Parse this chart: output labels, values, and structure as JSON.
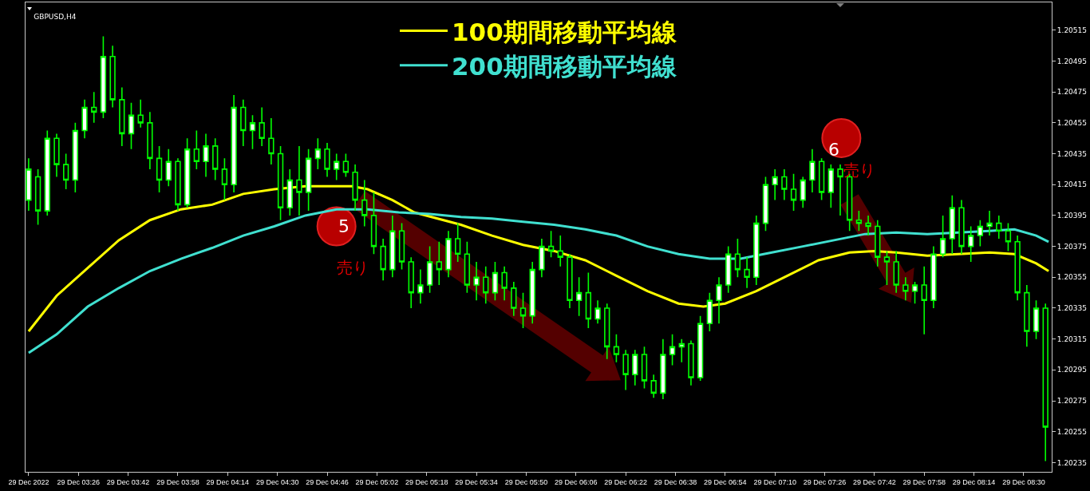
{
  "chart_data": {
    "type": "candlestick",
    "title": "GBPUSD,H4",
    "color": "#00ff00",
    "x": [
      "2022-12-29T03:10",
      "2022-12-29T03:13",
      "2022-12-29T03:16",
      "2022-12-29T03:19",
      "2022-12-29T03:22",
      "2022-12-29T03:25",
      "2022-12-29T03:28",
      "2022-12-29T03:31",
      "2022-12-29T03:34",
      "2022-12-29T03:37",
      "2022-12-29T03:40",
      "2022-12-29T03:43",
      "2022-12-29T03:46",
      "2022-12-29T03:49",
      "2022-12-29T03:52",
      "2022-12-29T03:55",
      "2022-12-29T03:58",
      "2022-12-29T04:01",
      "2022-12-29T04:04",
      "2022-12-29T04:07",
      "2022-12-29T04:10",
      "2022-12-29T04:13",
      "2022-12-29T04:16",
      "2022-12-29T04:19",
      "2022-12-29T04:22",
      "2022-12-29T04:25",
      "2022-12-29T04:28",
      "2022-12-29T04:31",
      "2022-12-29T04:34",
      "2022-12-29T04:37",
      "2022-12-29T04:40",
      "2022-12-29T04:43",
      "2022-12-29T04:46",
      "2022-12-29T04:49",
      "2022-12-29T04:52",
      "2022-12-29T04:55",
      "2022-12-29T04:58",
      "2022-12-29T05:01",
      "2022-12-29T05:04",
      "2022-12-29T05:07",
      "2022-12-29T05:10",
      "2022-12-29T05:13",
      "2022-12-29T05:16",
      "2022-12-29T05:19",
      "2022-12-29T05:22",
      "2022-12-29T05:25",
      "2022-12-29T05:28",
      "2022-12-29T05:31",
      "2022-12-29T05:34",
      "2022-12-29T05:37",
      "2022-12-29T05:40",
      "2022-12-29T05:43",
      "2022-12-29T05:46",
      "2022-12-29T05:49",
      "2022-12-29T05:52",
      "2022-12-29T05:55",
      "2022-12-29T05:58",
      "2022-12-29T06:01",
      "2022-12-29T06:04",
      "2022-12-29T06:07",
      "2022-12-29T06:10",
      "2022-12-29T06:13",
      "2022-12-29T06:16",
      "2022-12-29T06:19",
      "2022-12-29T06:22",
      "2022-12-29T06:25",
      "2022-12-29T06:28",
      "2022-12-29T06:31",
      "2022-12-29T06:34",
      "2022-12-29T06:37",
      "2022-12-29T06:40",
      "2022-12-29T06:43",
      "2022-12-29T06:46",
      "2022-12-29T06:49",
      "2022-12-29T06:52",
      "2022-12-29T06:55",
      "2022-12-29T06:58",
      "2022-12-29T07:01",
      "2022-12-29T07:04",
      "2022-12-29T07:07",
      "2022-12-29T07:10",
      "2022-12-29T07:13",
      "2022-12-29T07:16",
      "2022-12-29T07:19",
      "2022-12-29T07:22",
      "2022-12-29T07:25",
      "2022-12-29T07:28",
      "2022-12-29T07:31",
      "2022-12-29T07:34",
      "2022-12-29T07:37",
      "2022-12-29T07:40",
      "2022-12-29T07:43",
      "2022-12-29T07:46",
      "2022-12-29T07:49",
      "2022-12-29T07:52",
      "2022-12-29T07:55",
      "2022-12-29T07:58",
      "2022-12-29T08:01",
      "2022-12-29T08:04",
      "2022-12-29T08:07",
      "2022-12-29T08:10",
      "2022-12-29T08:13",
      "2022-12-29T08:16",
      "2022-12-29T08:19",
      "2022-12-29T08:22",
      "2022-12-29T08:25",
      "2022-12-29T08:28",
      "2022-12-29T08:31",
      "2022-12-29T08:34",
      "2022-12-29T08:37"
    ],
    "ohlc": [
      [
        1.20405,
        1.20432,
        1.20398,
        1.20425
      ],
      [
        1.2042,
        1.20425,
        1.20389,
        1.20398
      ],
      [
        1.20398,
        1.2045,
        1.20395,
        1.20445
      ],
      [
        1.20445,
        1.20448,
        1.2042,
        1.20428
      ],
      [
        1.20428,
        1.20435,
        1.20412,
        1.20418
      ],
      [
        1.20418,
        1.20455,
        1.2041,
        1.2045
      ],
      [
        1.2045,
        1.2047,
        1.20445,
        1.20465
      ],
      [
        1.20465,
        1.20475,
        1.20455,
        1.20462
      ],
      [
        1.20462,
        1.20511,
        1.20458,
        1.20498
      ],
      [
        1.20498,
        1.20505,
        1.20465,
        1.2047
      ],
      [
        1.2047,
        1.20478,
        1.2044,
        1.20448
      ],
      [
        1.20448,
        1.20468,
        1.20438,
        1.2046
      ],
      [
        1.2046,
        1.2047,
        1.20452,
        1.20455
      ],
      [
        1.20455,
        1.20462,
        1.20425,
        1.20432
      ],
      [
        1.20432,
        1.2044,
        1.2041,
        1.20418
      ],
      [
        1.20418,
        1.20438,
        1.20414,
        1.2043
      ],
      [
        1.2043,
        1.20432,
        1.20398,
        1.20402
      ],
      [
        1.20402,
        1.20445,
        1.204,
        1.20438
      ],
      [
        1.20438,
        1.2045,
        1.20425,
        1.2043
      ],
      [
        1.2043,
        1.20448,
        1.2042,
        1.2044
      ],
      [
        1.2044,
        1.20445,
        1.20418,
        1.20425
      ],
      [
        1.20425,
        1.20432,
        1.20405,
        1.20415
      ],
      [
        1.20415,
        1.20473,
        1.2041,
        1.20465
      ],
      [
        1.20465,
        1.2047,
        1.2044,
        1.2045
      ],
      [
        1.2045,
        1.2046,
        1.20438,
        1.20455
      ],
      [
        1.20455,
        1.20465,
        1.2044,
        1.20445
      ],
      [
        1.20445,
        1.20458,
        1.20428,
        1.20435
      ],
      [
        1.20435,
        1.2044,
        1.20392,
        1.204
      ],
      [
        1.204,
        1.20425,
        1.20395,
        1.20418
      ],
      [
        1.20418,
        1.2044,
        1.20395,
        1.2041
      ],
      [
        1.2041,
        1.20438,
        1.20398,
        1.20432
      ],
      [
        1.20432,
        1.20445,
        1.20425,
        1.20438
      ],
      [
        1.20438,
        1.20442,
        1.2042,
        1.20425
      ],
      [
        1.20425,
        1.20435,
        1.20418,
        1.2043
      ],
      [
        1.2043,
        1.20435,
        1.2042,
        1.20423
      ],
      [
        1.20423,
        1.20428,
        1.20398,
        1.20405
      ],
      [
        1.20405,
        1.20418,
        1.20388,
        1.20395
      ],
      [
        1.20395,
        1.2041,
        1.2037,
        1.20375
      ],
      [
        1.20375,
        1.2038,
        1.20353,
        1.2036
      ],
      [
        1.2036,
        1.20395,
        1.20355,
        1.20385
      ],
      [
        1.20385,
        1.2039,
        1.2036,
        1.20365
      ],
      [
        1.20365,
        1.20368,
        1.20335,
        1.20345
      ],
      [
        1.20345,
        1.2036,
        1.20338,
        1.2035
      ],
      [
        1.2035,
        1.20375,
        1.20345,
        1.20365
      ],
      [
        1.20365,
        1.20378,
        1.2035,
        1.2036
      ],
      [
        1.2036,
        1.20385,
        1.20355,
        1.2038
      ],
      [
        1.2038,
        1.2039,
        1.20365,
        1.2037
      ],
      [
        1.2037,
        1.20378,
        1.20345,
        1.2035
      ],
      [
        1.2035,
        1.20365,
        1.2034,
        1.20355
      ],
      [
        1.20355,
        1.20362,
        1.20338,
        1.20345
      ],
      [
        1.20345,
        1.20365,
        1.2034,
        1.20358
      ],
      [
        1.20358,
        1.20362,
        1.2034,
        1.20348
      ],
      [
        1.20348,
        1.20352,
        1.2033,
        1.20335
      ],
      [
        1.20335,
        1.20345,
        1.20322,
        1.2033
      ],
      [
        1.2033,
        1.20365,
        1.20325,
        1.2036
      ],
      [
        1.2036,
        1.2038,
        1.20355,
        1.20375
      ],
      [
        1.20375,
        1.20385,
        1.20368,
        1.20372
      ],
      [
        1.20372,
        1.20382,
        1.20362,
        1.20368
      ],
      [
        1.20368,
        1.2037,
        1.20335,
        1.2034
      ],
      [
        1.2034,
        1.20355,
        1.2033,
        1.20345
      ],
      [
        1.20345,
        1.20358,
        1.20322,
        1.20328
      ],
      [
        1.20328,
        1.2034,
        1.20325,
        1.20335
      ],
      [
        1.20335,
        1.20338,
        1.20302,
        1.2031
      ],
      [
        1.2031,
        1.20318,
        1.203,
        1.20305
      ],
      [
        1.20305,
        1.20308,
        1.20282,
        1.20292
      ],
      [
        1.20292,
        1.20308,
        1.20285,
        1.20305
      ],
      [
        1.20305,
        1.2031,
        1.20283,
        1.20288
      ],
      [
        1.20288,
        1.20292,
        1.20277,
        1.2028
      ],
      [
        1.2028,
        1.20315,
        1.20276,
        1.20305
      ],
      [
        1.20305,
        1.20318,
        1.20298,
        1.2031
      ],
      [
        1.2031,
        1.20315,
        1.203,
        1.20312
      ],
      [
        1.20312,
        1.20314,
        1.20285,
        1.2029
      ],
      [
        1.2029,
        1.2033,
        1.20288,
        1.20325
      ],
      [
        1.20325,
        1.20345,
        1.2032,
        1.2034
      ],
      [
        1.2034,
        1.20355,
        1.20325,
        1.2035
      ],
      [
        1.2035,
        1.20375,
        1.20345,
        1.2037
      ],
      [
        1.2037,
        1.2038,
        1.20355,
        1.2036
      ],
      [
        1.2036,
        1.20368,
        1.20348,
        1.20355
      ],
      [
        1.20355,
        1.20395,
        1.2035,
        1.2039
      ],
      [
        1.2039,
        1.2042,
        1.20385,
        1.20415
      ],
      [
        1.20415,
        1.20425,
        1.20405,
        1.2042
      ],
      [
        1.2042,
        1.20425,
        1.20405,
        1.20412
      ],
      [
        1.20412,
        1.20422,
        1.20398,
        1.20405
      ],
      [
        1.20405,
        1.2042,
        1.204,
        1.20418
      ],
      [
        1.20418,
        1.20438,
        1.2041,
        1.2043
      ],
      [
        1.2043,
        1.20432,
        1.20405,
        1.2041
      ],
      [
        1.2041,
        1.20428,
        1.204,
        1.20425
      ],
      [
        1.20425,
        1.20428,
        1.20395,
        1.2042
      ],
      [
        1.2042,
        1.20422,
        1.20385,
        1.20392
      ],
      [
        1.20392,
        1.20398,
        1.20385,
        1.2039
      ],
      [
        1.2039,
        1.20395,
        1.20382,
        1.20388
      ],
      [
        1.20388,
        1.20392,
        1.20362,
        1.20368
      ],
      [
        1.20368,
        1.20372,
        1.2035,
        1.20365
      ],
      [
        1.20365,
        1.20372,
        1.20345,
        1.2035
      ],
      [
        1.2035,
        1.20355,
        1.2034,
        1.20346
      ],
      [
        1.20346,
        1.20352,
        1.20338,
        1.2035
      ],
      [
        1.2035,
        1.20362,
        1.20318,
        1.2034
      ],
      [
        1.2034,
        1.20375,
        1.20335,
        1.2037
      ],
      [
        1.2037,
        1.20395,
        1.20368,
        1.2038
      ],
      [
        1.2038,
        1.20408,
        1.2037,
        1.204
      ],
      [
        1.204,
        1.20405,
        1.2037,
        1.20375
      ],
      [
        1.20375,
        1.20388,
        1.20365,
        1.20382
      ],
      [
        1.20382,
        1.20392,
        1.20375,
        1.20388
      ],
      [
        1.20388,
        1.20398,
        1.20382,
        1.2039
      ],
      [
        1.2039,
        1.20395,
        1.2038,
        1.20385
      ],
      [
        1.20385,
        1.2039,
        1.20372,
        1.20378
      ],
      [
        1.20378,
        1.20382,
        1.2034,
        1.20345
      ],
      [
        1.20345,
        1.2035,
        1.2031,
        1.2032
      ],
      [
        1.2032,
        1.2034,
        1.20315,
        1.20335
      ],
      [
        1.20335,
        1.20338,
        1.20236,
        1.20258
      ]
    ],
    "series": [
      {
        "type": "line",
        "name": "100期間移動平均線",
        "color": "#ffff00",
        "x": [
          "2022-12-29T03:10",
          "2022-12-29T03:19",
          "2022-12-29T03:29",
          "2022-12-29T03:39",
          "2022-12-29T03:49",
          "2022-12-29T03:59",
          "2022-12-29T04:09",
          "2022-12-29T04:19",
          "2022-12-29T04:29",
          "2022-12-29T04:39",
          "2022-12-29T04:54",
          "2022-12-29T04:59",
          "2022-12-29T05:07",
          "2022-12-29T05:14",
          "2022-12-29T05:29",
          "2022-12-29T05:39",
          "2022-12-29T05:49",
          "2022-12-29T05:59",
          "2022-12-29T06:09",
          "2022-12-29T06:19",
          "2022-12-29T06:29",
          "2022-12-29T06:39",
          "2022-12-29T06:47",
          "2022-12-29T06:54",
          "2022-12-29T07:04",
          "2022-12-29T07:14",
          "2022-12-29T07:24",
          "2022-12-29T07:34",
          "2022-12-29T07:42",
          "2022-12-29T07:49",
          "2022-12-29T07:59",
          "2022-12-29T08:09",
          "2022-12-29T08:19",
          "2022-12-29T08:27",
          "2022-12-29T08:34",
          "2022-12-29T08:38"
        ],
        "values": [
          1.2032,
          1.20343,
          1.20361,
          1.20379,
          1.20392,
          1.20399,
          1.20402,
          1.20409,
          1.20412,
          1.20414,
          1.20414,
          1.20412,
          1.20405,
          1.20397,
          1.20389,
          1.20382,
          1.20376,
          1.20372,
          1.20366,
          1.20356,
          1.20346,
          1.20338,
          1.20336,
          1.20338,
          1.20346,
          1.20356,
          1.20366,
          1.20371,
          1.20372,
          1.20371,
          1.20369,
          1.2037,
          1.20371,
          1.2037,
          1.20364,
          1.20359
        ]
      },
      {
        "type": "line",
        "name": "200期間移動平均線",
        "color": "#40e0d0",
        "x": [
          "2022-12-29T03:10",
          "2022-12-29T03:19",
          "2022-12-29T03:29",
          "2022-12-29T03:39",
          "2022-12-29T03:49",
          "2022-12-29T03:59",
          "2022-12-29T04:09",
          "2022-12-29T04:19",
          "2022-12-29T04:29",
          "2022-12-29T04:39",
          "2022-12-29T04:49",
          "2022-12-29T04:59",
          "2022-12-29T05:09",
          "2022-12-29T05:19",
          "2022-12-29T05:29",
          "2022-12-29T05:39",
          "2022-12-29T05:49",
          "2022-12-29T05:59",
          "2022-12-29T06:09",
          "2022-12-29T06:19",
          "2022-12-29T06:29",
          "2022-12-29T06:39",
          "2022-12-29T06:49",
          "2022-12-29T06:59",
          "2022-12-29T07:09",
          "2022-12-29T07:19",
          "2022-12-29T07:29",
          "2022-12-29T07:39",
          "2022-12-29T07:49",
          "2022-12-29T07:59",
          "2022-12-29T08:09",
          "2022-12-29T08:19",
          "2022-12-29T08:27",
          "2022-12-29T08:34",
          "2022-12-29T08:38"
        ],
        "values": [
          1.20306,
          1.20318,
          1.20336,
          1.20348,
          1.20359,
          1.20367,
          1.20374,
          1.20382,
          1.20388,
          1.20395,
          1.20399,
          1.20399,
          1.20397,
          1.20396,
          1.20394,
          1.20393,
          1.20391,
          1.20389,
          1.20386,
          1.20382,
          1.20375,
          1.2037,
          1.20367,
          1.20367,
          1.20371,
          1.20375,
          1.20379,
          1.20383,
          1.20384,
          1.20383,
          1.20384,
          1.20385,
          1.20386,
          1.20382,
          1.20378
        ]
      }
    ],
    "xlim": [
      "2022-12-29T03:09",
      "2022-12-29T08:39"
    ],
    "xticks": [
      {
        "value": "2022-12-29T03:10",
        "label": "29 Dec 2022"
      },
      {
        "value": "2022-12-29T03:26",
        "label": "29 Dec 03:26"
      },
      {
        "value": "2022-12-29T03:42",
        "label": "29 Dec 03:42"
      },
      {
        "value": "2022-12-29T03:58",
        "label": "29 Dec 03:58"
      },
      {
        "value": "2022-12-29T04:14",
        "label": "29 Dec 04:14"
      },
      {
        "value": "2022-12-29T04:30",
        "label": "29 Dec 04:30"
      },
      {
        "value": "2022-12-29T04:46",
        "label": "29 Dec 04:46"
      },
      {
        "value": "2022-12-29T05:02",
        "label": "29 Dec 05:02"
      },
      {
        "value": "2022-12-29T05:18",
        "label": "29 Dec 05:18"
      },
      {
        "value": "2022-12-29T05:34",
        "label": "29 Dec 05:34"
      },
      {
        "value": "2022-12-29T05:50",
        "label": "29 Dec 05:50"
      },
      {
        "value": "2022-12-29T06:06",
        "label": "29 Dec 06:06"
      },
      {
        "value": "2022-12-29T06:22",
        "label": "29 Dec 06:22"
      },
      {
        "value": "2022-12-29T06:38",
        "label": "29 Dec 06:38"
      },
      {
        "value": "2022-12-29T06:54",
        "label": "29 Dec 06:54"
      },
      {
        "value": "2022-12-29T07:10",
        "label": "29 Dec 07:10"
      },
      {
        "value": "2022-12-29T07:26",
        "label": "29 Dec 07:26"
      },
      {
        "value": "2022-12-29T07:42",
        "label": "29 Dec 07:42"
      },
      {
        "value": "2022-12-29T07:58",
        "label": "29 Dec 07:58"
      },
      {
        "value": "2022-12-29T08:14",
        "label": "29 Dec 08:14"
      },
      {
        "value": "2022-12-29T08:30",
        "label": "29 Dec 08:30"
      }
    ],
    "ylim": [
      1.20229,
      1.20533
    ],
    "yticks": [
      1.20235,
      1.20255,
      1.20275,
      1.20295,
      1.20315,
      1.20335,
      1.20355,
      1.20375,
      1.20395,
      1.20415,
      1.20435,
      1.20455,
      1.20475,
      1.20495,
      1.20515
    ],
    "annotations": [
      "5",
      "売り",
      "6",
      "売り"
    ],
    "legend": "top",
    "grid": false,
    "marker": "none",
    "line_style": "solid"
  }
}
